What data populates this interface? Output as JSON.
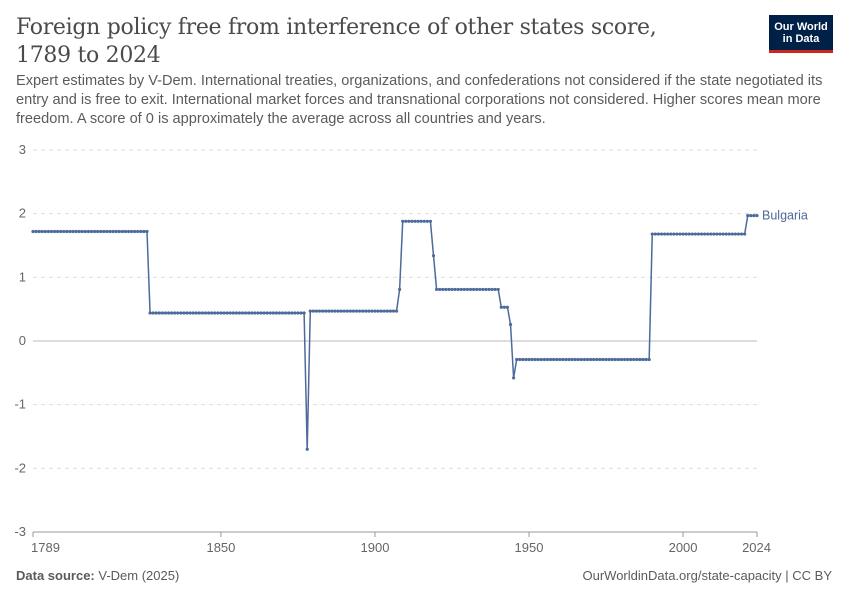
{
  "header": {
    "title": "Foreign policy free from interference of other states score, 1789 to 2024",
    "subtitle": "Expert estimates by V-Dem. International treaties, organizations, and confederations not considered if the state negotiated its entry and is free to exit. International market forces and transnational corporations not considered. Higher scores mean more freedom. A score of 0 is approximately the average across all countries and years.",
    "logo_line1": "Our World",
    "logo_line2": "in Data"
  },
  "footer": {
    "source_label": "Data source:",
    "source_value": "V-Dem (2025)",
    "url_text": "OurWorldinData.org/state-capacity | CC BY"
  },
  "colors": {
    "series": "#4c6a9c",
    "grid": "#dddddd",
    "zero_line": "#bbbbbb",
    "axis": "#999999",
    "tick_text": "#666666",
    "logo_bg": "#002147",
    "logo_accent": "#ce261e"
  },
  "chart_data": {
    "type": "line",
    "title": "Foreign policy free from interference of other states score, 1789 to 2024",
    "xlabel": "",
    "ylabel": "",
    "xlim": [
      1789,
      2024
    ],
    "ylim": [
      -3,
      3
    ],
    "x_ticks": [
      "1789",
      "1850",
      "1900",
      "1950",
      "2000",
      "2024"
    ],
    "y_ticks": [
      "-3",
      "-2",
      "-1",
      "0",
      "1",
      "2",
      "3"
    ],
    "grid": true,
    "series": [
      {
        "name": "Bulgaria",
        "points": [
          [
            1789,
            1.72
          ],
          [
            1826,
            1.72
          ],
          [
            1827,
            0.44
          ],
          [
            1877,
            0.44
          ],
          [
            1878,
            -1.7
          ],
          [
            1879,
            0.47
          ],
          [
            1907,
            0.47
          ],
          [
            1908,
            0.81
          ],
          [
            1909,
            1.88
          ],
          [
            1918,
            1.88
          ],
          [
            1919,
            1.34
          ],
          [
            1920,
            0.81
          ],
          [
            1940,
            0.81
          ],
          [
            1941,
            0.53
          ],
          [
            1943,
            0.53
          ],
          [
            1944,
            0.26
          ],
          [
            1945,
            -0.58
          ],
          [
            1946,
            -0.29
          ],
          [
            1989,
            -0.29
          ],
          [
            1990,
            1.68
          ],
          [
            2020,
            1.68
          ],
          [
            2021,
            1.97
          ],
          [
            2024,
            1.97
          ]
        ]
      }
    ]
  }
}
